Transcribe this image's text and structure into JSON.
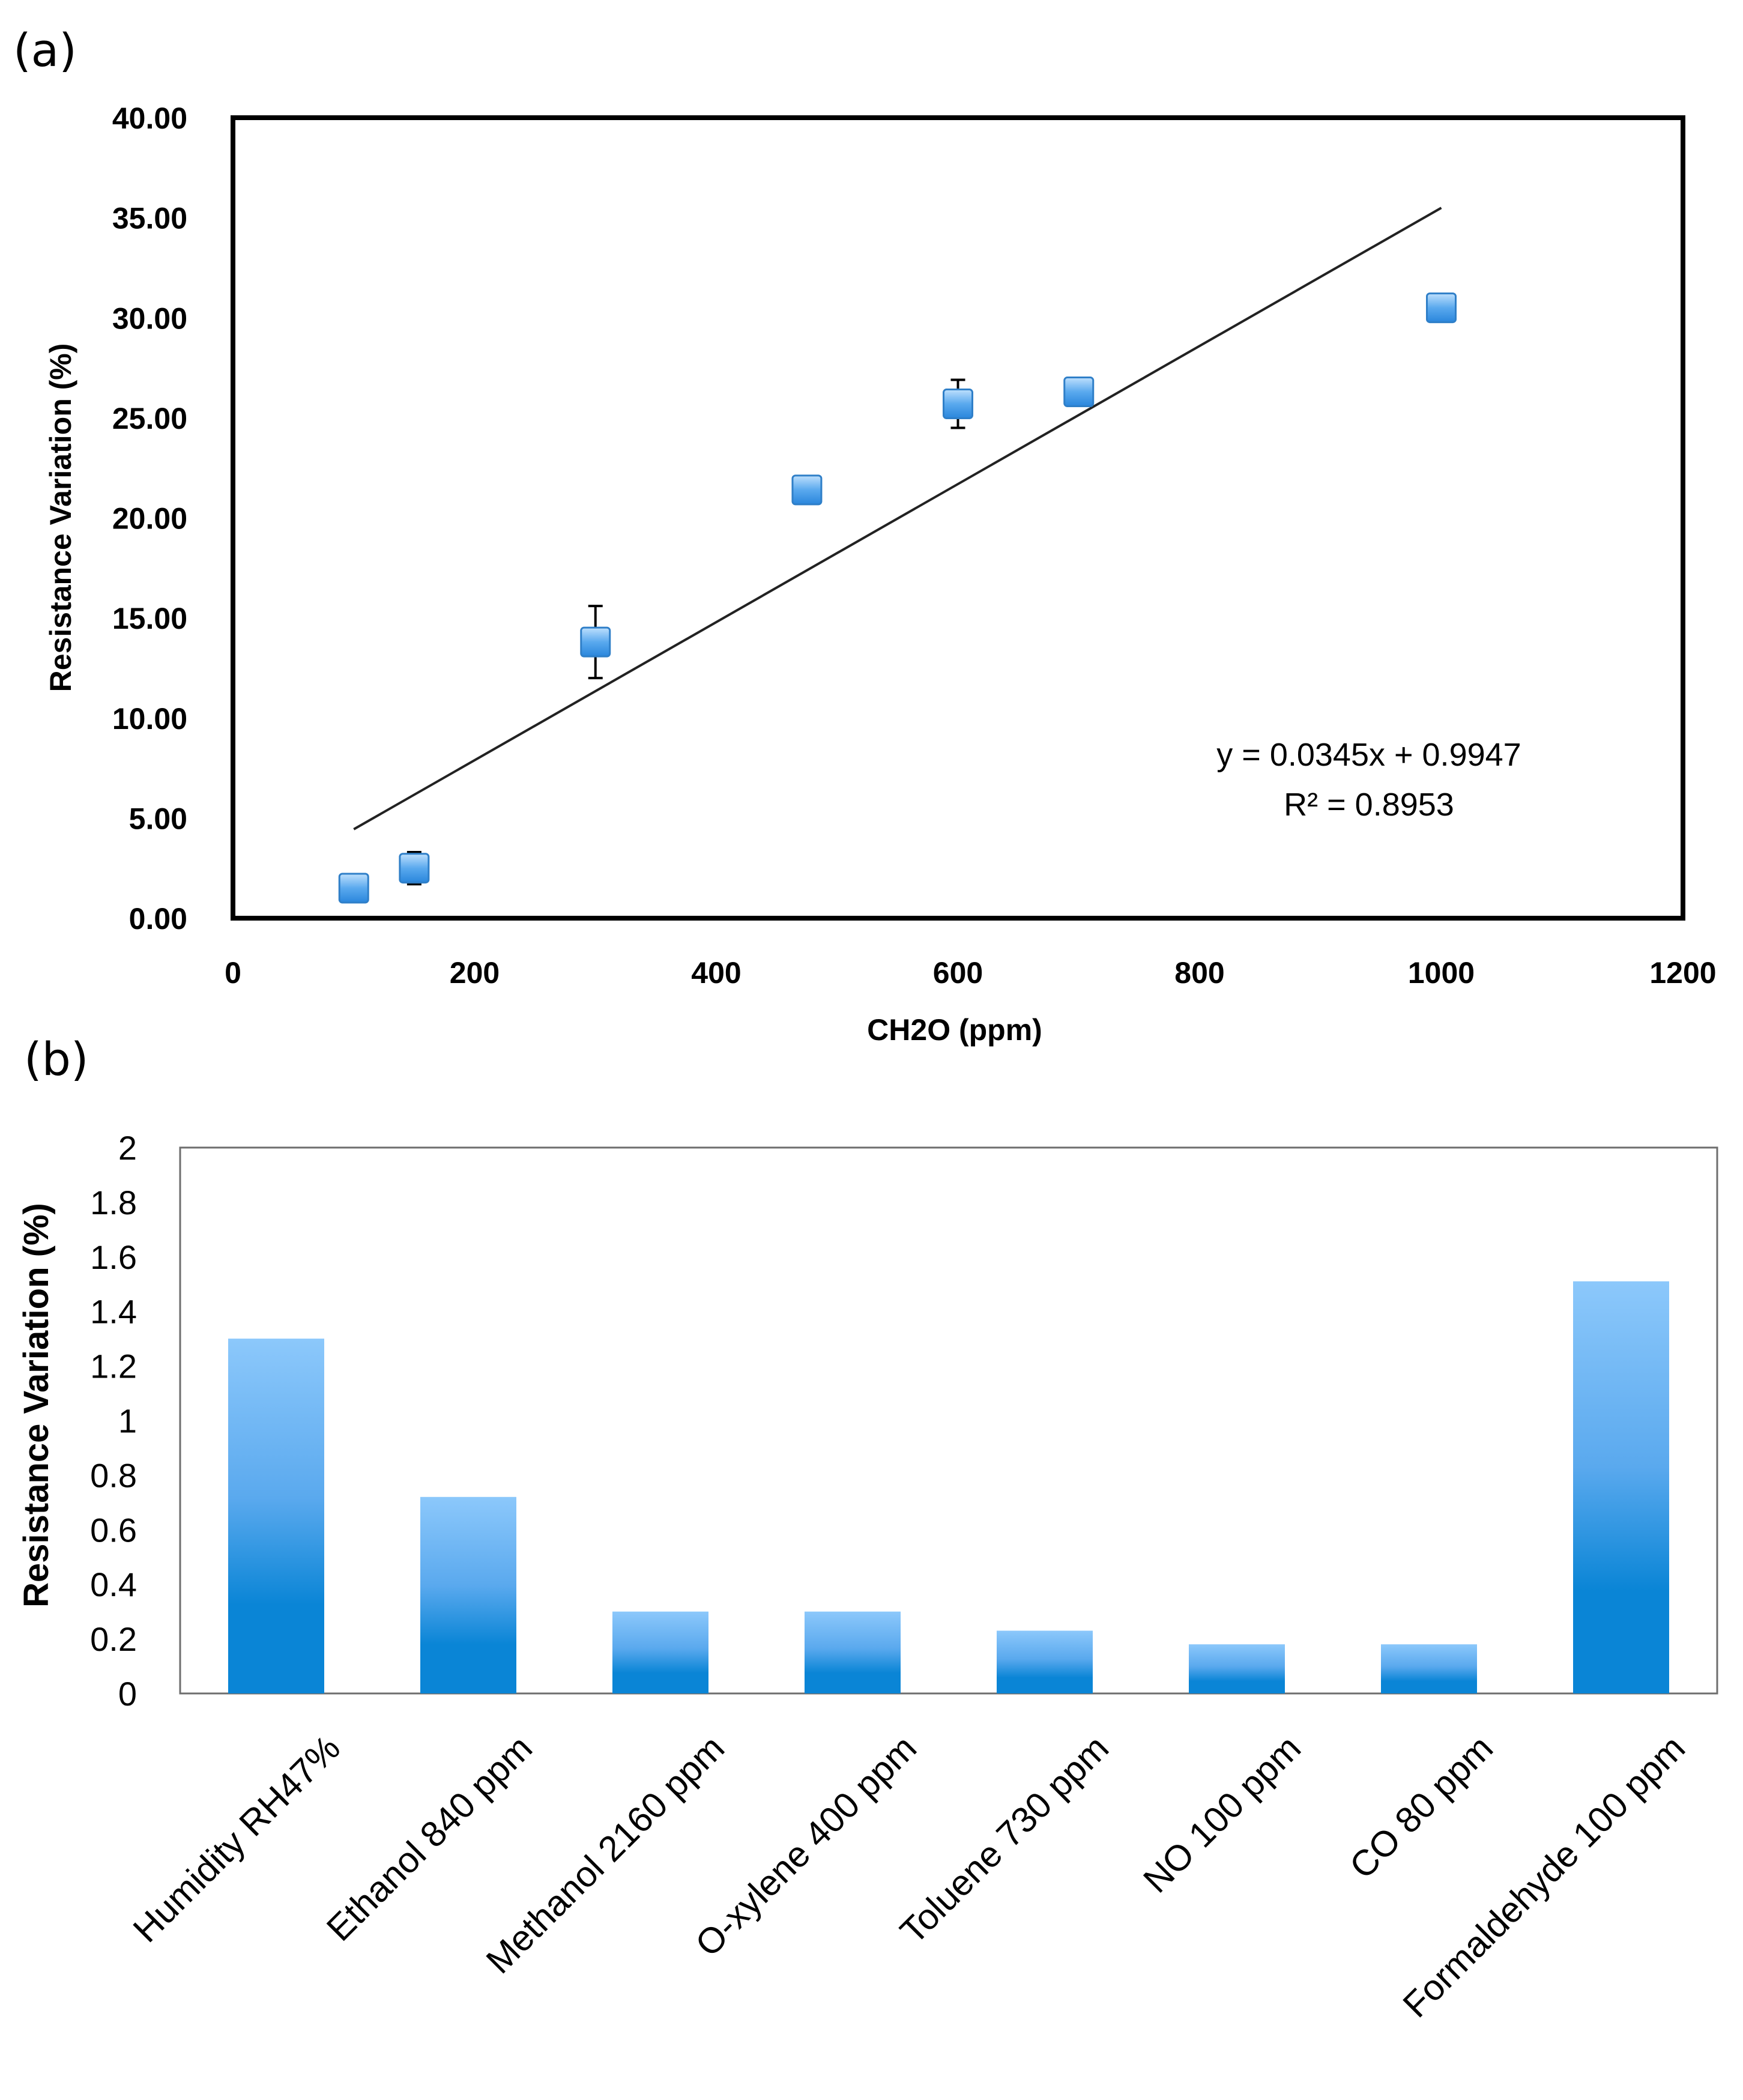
{
  "panels": {
    "a": "(a)",
    "b": "(b)"
  },
  "chart_data": [
    {
      "type": "scatter",
      "title": "",
      "xlabel": "CH2O (ppm)",
      "ylabel": "Resistance Variation (%)",
      "xlim": [
        0,
        1200
      ],
      "ylim": [
        0,
        40
      ],
      "x_ticks": [
        "0",
        "200",
        "400",
        "600",
        "800",
        "1000",
        "1200"
      ],
      "y_ticks": [
        "0.00",
        "5.00",
        "10.00",
        "15.00",
        "20.00",
        "25.00",
        "30.00",
        "35.00",
        "40.00"
      ],
      "points": [
        {
          "x": 100,
          "y": 1.5,
          "err": 0.0
        },
        {
          "x": 150,
          "y": 2.5,
          "err": 0.8
        },
        {
          "x": 300,
          "y": 13.8,
          "err": 1.8
        },
        {
          "x": 475,
          "y": 21.4,
          "err": 0.0
        },
        {
          "x": 600,
          "y": 25.7,
          "err": 1.2
        },
        {
          "x": 700,
          "y": 26.3,
          "err": 0.0
        },
        {
          "x": 1000,
          "y": 30.5,
          "err": 0.0
        }
      ],
      "trendline": {
        "slope": 0.0345,
        "intercept": 0.9947,
        "x_range": [
          100,
          1000
        ]
      },
      "equation": "y = 0.0345x + 0.9947",
      "r_squared": "R² = 0.8953",
      "colors": {
        "marker": "#5aa9ee",
        "marker_edge": "#2f7fc8",
        "trend": "#222222",
        "axis": "#000000"
      }
    },
    {
      "type": "bar",
      "title": "",
      "xlabel": "",
      "ylabel": "Resistance Variation (%)",
      "ylim": [
        0,
        2
      ],
      "y_ticks": [
        "0",
        "0.2",
        "0.4",
        "0.6",
        "0.8",
        "1",
        "1.2",
        "1.4",
        "1.6",
        "1.8",
        "2"
      ],
      "categories": [
        "Humidity RH47%",
        "Ethanol 840 ppm",
        "Methanol 2160 ppm",
        "O-xylene 400 ppm",
        "Toluene 730 ppm",
        "NO 100 ppm",
        "CO 80 ppm",
        "Formaldehyde 100 ppm"
      ],
      "values": [
        1.3,
        0.72,
        0.3,
        0.3,
        0.23,
        0.18,
        0.18,
        1.51
      ],
      "colors": {
        "bar_top": "#8cc8fb",
        "bar_bottom": "#0a85d6",
        "axis": "#6e6e6e"
      }
    }
  ]
}
